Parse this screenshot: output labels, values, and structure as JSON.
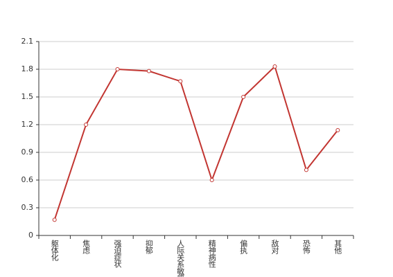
{
  "chart_data": {
    "type": "line",
    "categories": [
      "躯体化",
      "焦虑",
      "强迫症状",
      "抑郁",
      "人际关系敏感",
      "精神病性",
      "偏执",
      "敌对",
      "恐怖",
      "其他"
    ],
    "series": [
      {
        "color": "#c23531",
        "values": [
          0.17,
          1.2,
          1.8,
          1.78,
          1.67,
          0.6,
          1.5,
          1.83,
          0.71,
          1.14
        ]
      }
    ],
    "ylim": [
      0,
      2.1
    ],
    "yticks": [
      0,
      0.3,
      0.6,
      0.9,
      1.2,
      1.5,
      1.8,
      2.1
    ],
    "grid": true
  }
}
